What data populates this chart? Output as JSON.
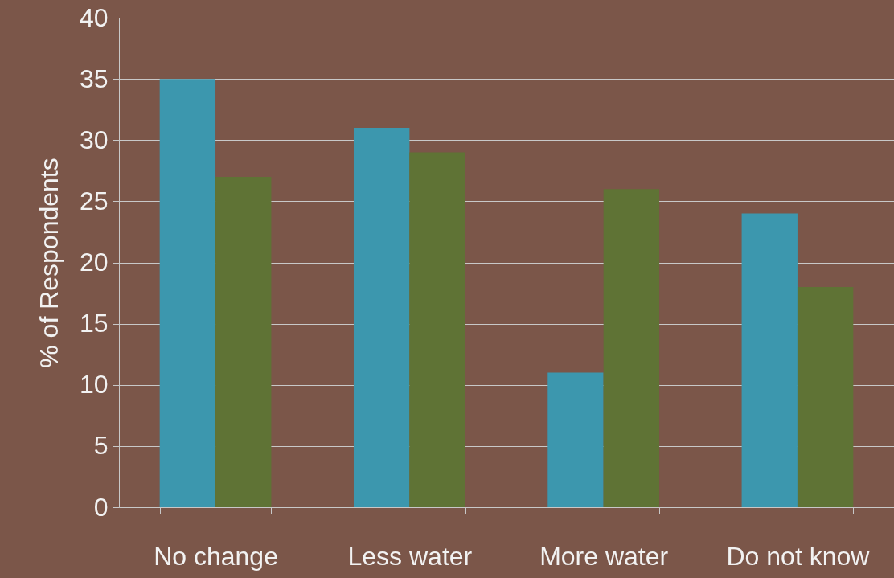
{
  "chart_data": {
    "type": "bar",
    "ylabel": "% of Respondents",
    "categories": [
      "No change",
      "Less water",
      "More water",
      "Do not know"
    ],
    "series": [
      {
        "color": "#3c97ae",
        "values": [
          35,
          31,
          11,
          24
        ]
      },
      {
        "color": "#5f7335",
        "values": [
          27,
          29,
          26,
          18
        ]
      }
    ],
    "ylim": [
      0,
      40
    ],
    "yticks": [
      0,
      5,
      10,
      15,
      20,
      25,
      30,
      35,
      40
    ],
    "grid": "y",
    "legend": false
  }
}
